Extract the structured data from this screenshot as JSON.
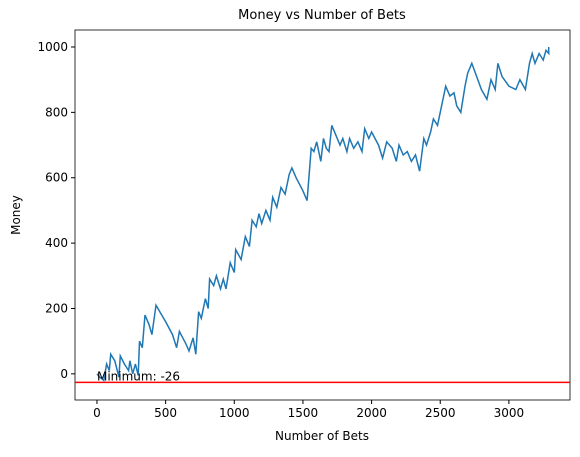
{
  "chart_data": {
    "type": "line",
    "title": "Money vs Number of Bets",
    "xlabel": "Number of Bets",
    "ylabel": "Money",
    "xlim": [
      -160,
      3445
    ],
    "ylim": [
      -80,
      1052
    ],
    "xticks": [
      0,
      500,
      1000,
      1500,
      2000,
      2500,
      3000
    ],
    "yticks": [
      0,
      200,
      400,
      600,
      800,
      1000
    ],
    "hline": {
      "value": -26,
      "label": "Minimum: -26",
      "color": "#ff0000"
    },
    "series": [
      {
        "color": "#1f77b4",
        "x": [
          0,
          20,
          50,
          70,
          90,
          100,
          130,
          160,
          170,
          200,
          230,
          240,
          260,
          280,
          300,
          310,
          330,
          350,
          380,
          400,
          430,
          500,
          550,
          580,
          600,
          650,
          670,
          700,
          720,
          740,
          760,
          790,
          810,
          820,
          850,
          870,
          900,
          920,
          940,
          970,
          1000,
          1010,
          1050,
          1080,
          1110,
          1130,
          1160,
          1180,
          1200,
          1230,
          1260,
          1280,
          1310,
          1340,
          1370,
          1400,
          1420,
          1450,
          1500,
          1530,
          1560,
          1580,
          1600,
          1630,
          1650,
          1670,
          1690,
          1710,
          1740,
          1770,
          1790,
          1820,
          1840,
          1870,
          1900,
          1930,
          1950,
          1980,
          2000,
          2050,
          2080,
          2110,
          2150,
          2180,
          2200,
          2230,
          2260,
          2290,
          2320,
          2350,
          2380,
          2400,
          2430,
          2450,
          2480,
          2510,
          2540,
          2570,
          2600,
          2620,
          2650,
          2680,
          2700,
          2730,
          2800,
          2840,
          2870,
          2900,
          2920,
          2950,
          3000,
          3050,
          3080,
          3120,
          3150,
          3170,
          3190,
          3220,
          3250,
          3270,
          3290,
          3290
        ],
        "values": [
          0,
          -10,
          -20,
          30,
          10,
          60,
          40,
          -10,
          55,
          30,
          10,
          40,
          0,
          30,
          -5,
          100,
          80,
          180,
          150,
          120,
          210,
          160,
          120,
          80,
          130,
          90,
          70,
          110,
          60,
          190,
          170,
          230,
          200,
          290,
          270,
          300,
          260,
          290,
          260,
          340,
          310,
          380,
          350,
          420,
          390,
          470,
          450,
          490,
          460,
          500,
          470,
          540,
          510,
          570,
          550,
          610,
          630,
          600,
          560,
          530,
          690,
          680,
          710,
          650,
          720,
          690,
          680,
          760,
          730,
          700,
          720,
          680,
          720,
          690,
          710,
          680,
          750,
          720,
          740,
          700,
          660,
          710,
          690,
          650,
          700,
          670,
          680,
          650,
          670,
          620,
          720,
          700,
          740,
          780,
          760,
          820,
          880,
          850,
          860,
          820,
          800,
          880,
          920,
          950,
          870,
          840,
          900,
          870,
          950,
          910,
          880,
          870,
          900,
          870,
          950,
          980,
          950,
          980,
          960,
          990,
          980,
          1000
        ]
      }
    ]
  }
}
